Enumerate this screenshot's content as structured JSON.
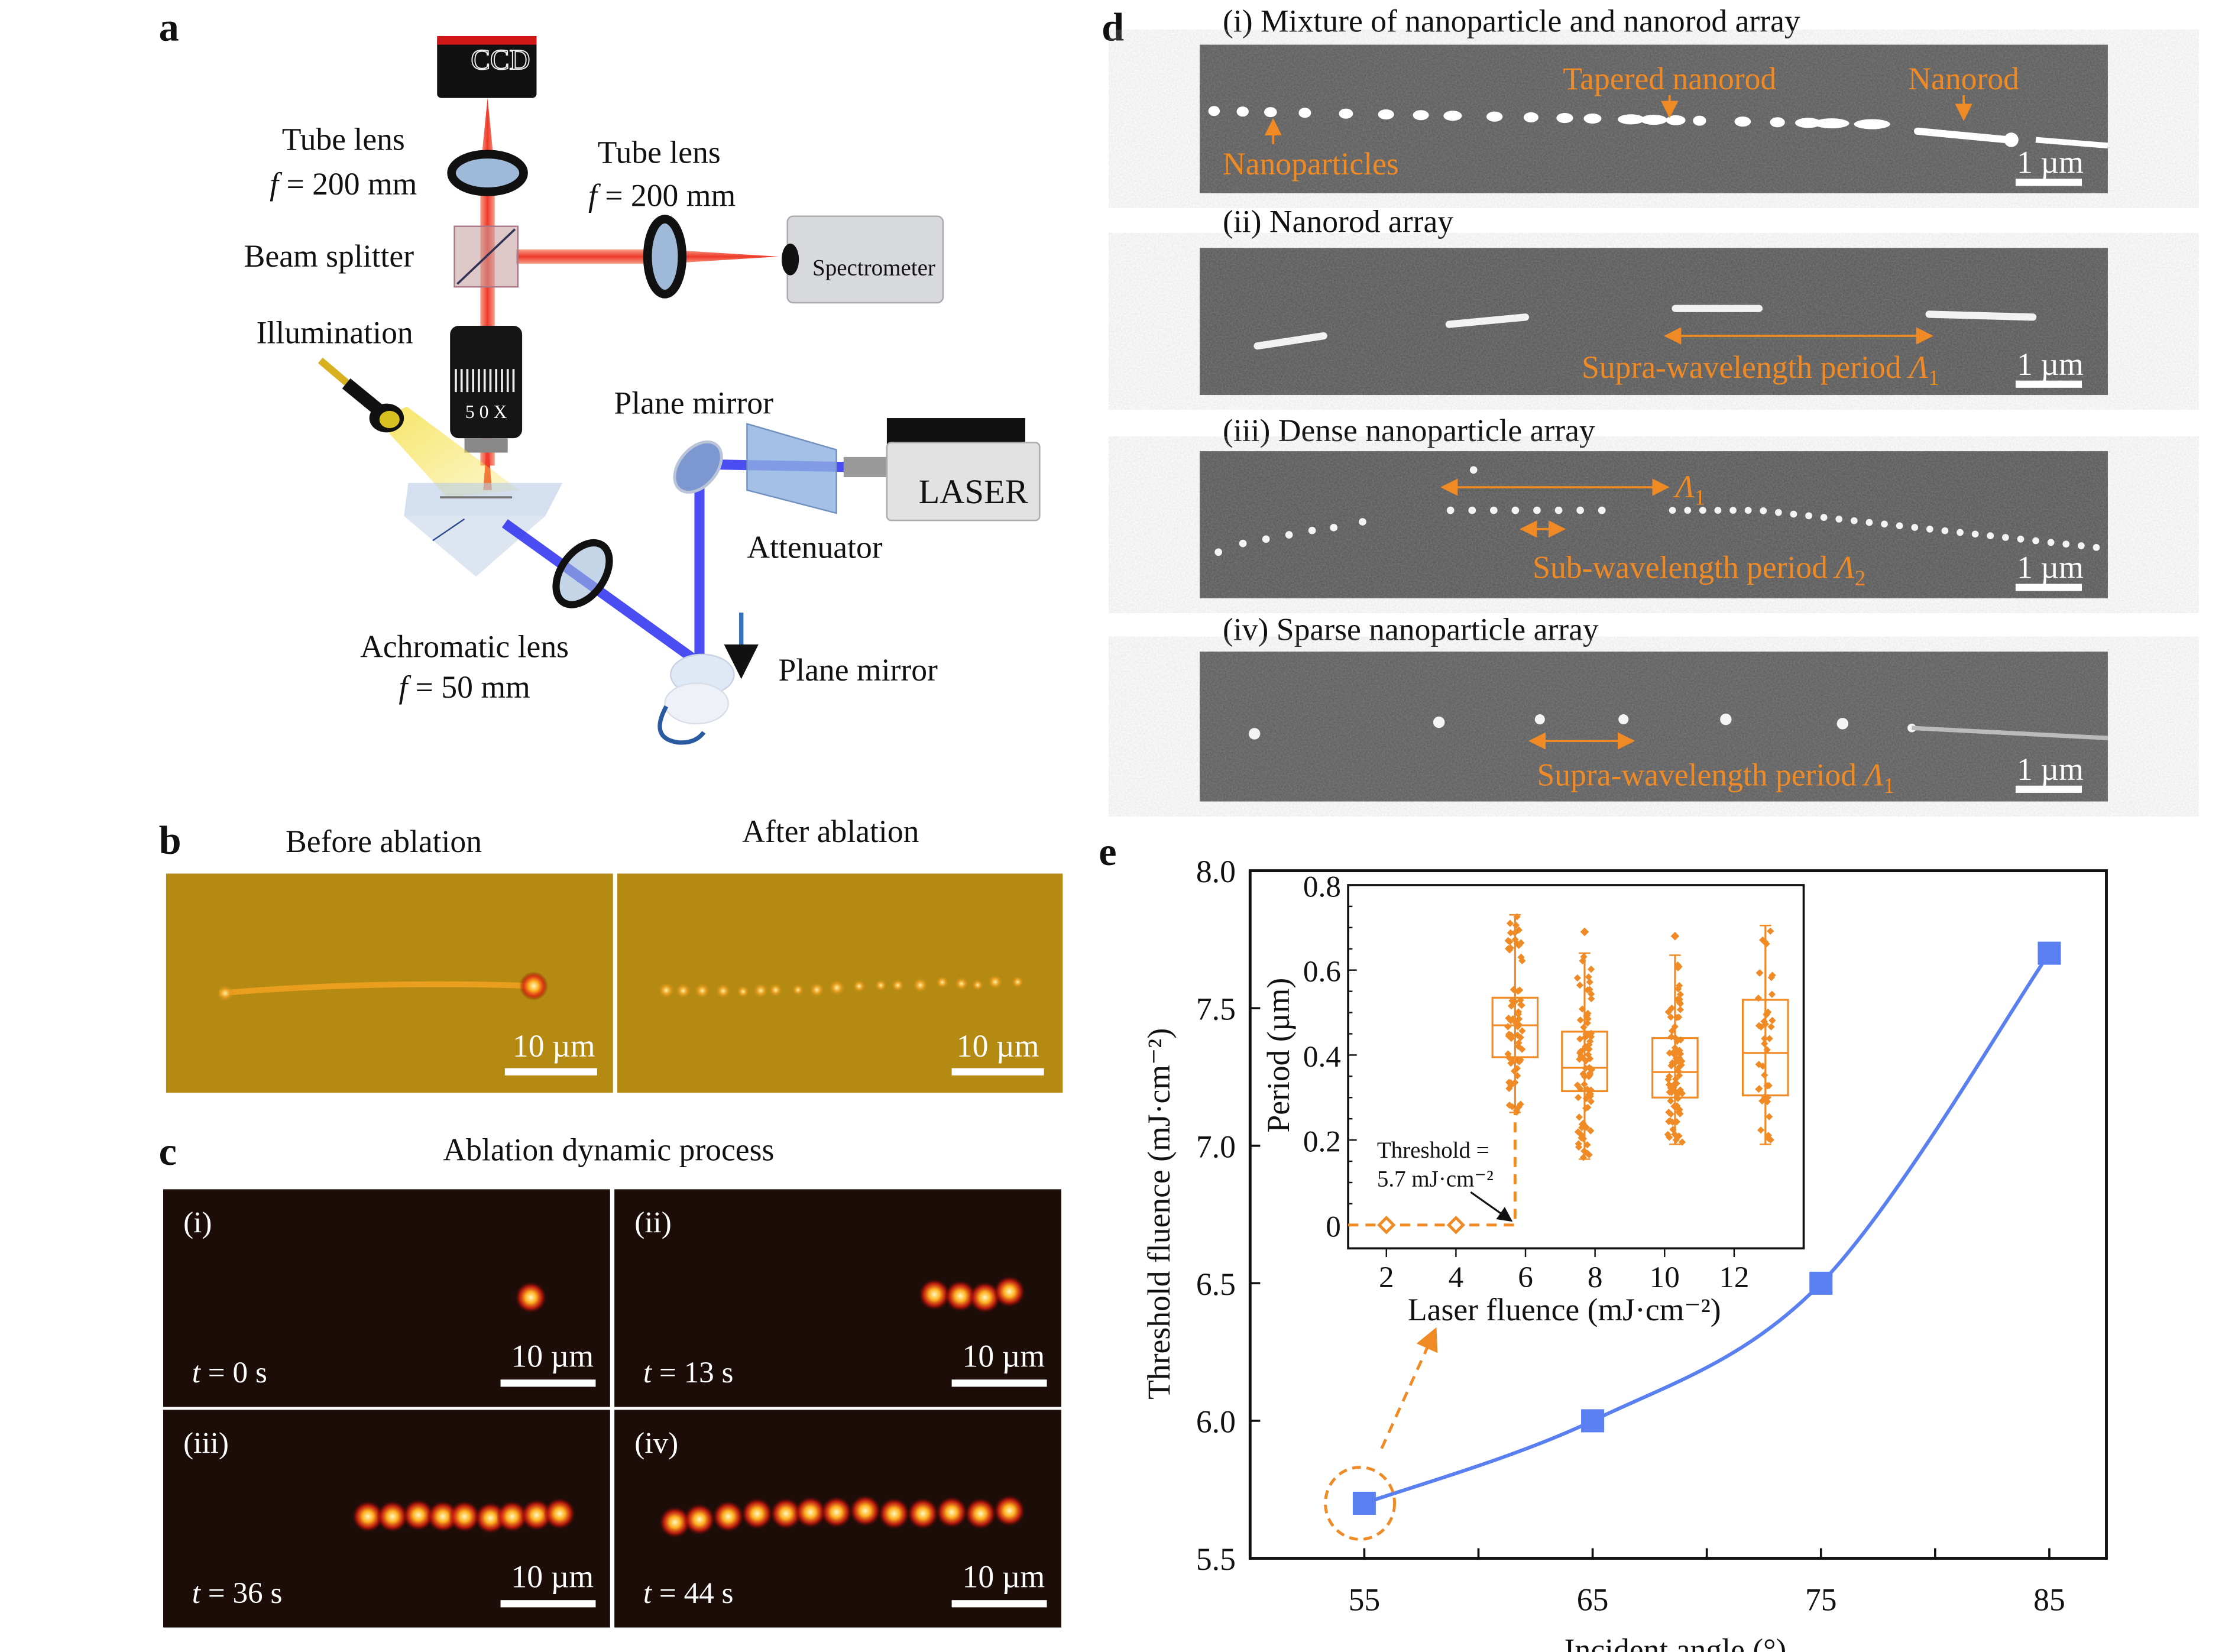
{
  "panel_a": {
    "letter": "a",
    "ccd": "CCD",
    "tube_lens_left": {
      "name": "Tube lens",
      "f_symbol": "f",
      "f_value": " = 200 mm"
    },
    "tube_lens_right": {
      "name": "Tube lens",
      "f_symbol": "f",
      "f_value": " = 200 mm"
    },
    "beam_splitter": "Beam splitter",
    "spectrometer": "Spectrometer",
    "illumination": "Illumination",
    "objective": "5 0 X",
    "plane_mirror_top": "Plane mirror",
    "laser": "LASER",
    "attenuator": "Attenuator",
    "achromatic_lens": {
      "name": "Achromatic lens",
      "f_symbol": "f",
      "f_value": " = 50 mm"
    },
    "plane_mirror_bottom": "Plane mirror",
    "colors": {
      "red_beam": "#f0503c",
      "blue_beam": "#2a2ef0",
      "illumination": "#f5e04a"
    }
  },
  "panel_b": {
    "letter": "b",
    "before": "Before ablation",
    "after": "After ablation",
    "scale_bar": "10 µm",
    "background": "#b58a12"
  },
  "panel_c": {
    "letter": "c",
    "title": "Ablation dynamic process",
    "scale_bar": "10 µm",
    "frames": [
      {
        "index": "(i)",
        "t_symbol": "t",
        "t_value": " = 0 s"
      },
      {
        "index": "(ii)",
        "t_symbol": "t",
        "t_value": " = 13 s"
      },
      {
        "index": "(iii)",
        "t_symbol": "t",
        "t_value": " = 36 s"
      },
      {
        "index": "(iv)",
        "t_symbol": "t",
        "t_value": " = 44 s"
      }
    ]
  },
  "panel_d": {
    "letter": "d",
    "scale_bar": "1 µm",
    "rows": [
      {
        "title": "(i) Mixture of nanoparticle and nanorod array",
        "annotations": {
          "tapered": "Tapered nanorod",
          "nanorod": "Nanorod",
          "nanoparticles": "Nanoparticles"
        }
      },
      {
        "title": "(ii) Nanorod array",
        "annotations": {
          "period": "Supra-wavelength period ",
          "symbol": "Λ",
          "subscript": "1"
        }
      },
      {
        "title": "(iii) Dense nanoparticle array",
        "annotations": {
          "symbol_top": "Λ",
          "subscript_top": "1",
          "period": "Sub-wavelength period ",
          "symbol": "Λ",
          "subscript": "2"
        }
      },
      {
        "title": "(iv) Sparse nanoparticle array",
        "annotations": {
          "period": "Supra-wavelength period ",
          "symbol": "Λ",
          "subscript": "1"
        }
      }
    ],
    "annotation_color": "#f08a24"
  },
  "panel_e": {
    "letter": "e"
  },
  "chart_data": [
    {
      "type": "line",
      "title": "",
      "xlabel": "Incident angle (°)",
      "ylabel": "Threshold fluence (mJ·cm⁻²)",
      "x": [
        55,
        65,
        75,
        85
      ],
      "y": [
        5.7,
        6.0,
        6.5,
        7.7
      ],
      "xlim": [
        50,
        87.5
      ],
      "ylim": [
        5.5,
        8.0
      ],
      "xticks": [
        55,
        65,
        75,
        85
      ],
      "xticklabels": [
        "55",
        "65",
        "75",
        "85"
      ],
      "yticks": [
        5.5,
        6.0,
        6.5,
        7.0,
        7.5,
        8.0
      ],
      "yticklabels": [
        "5.5",
        "6.0",
        "6.5",
        "7.0",
        "7.5",
        "8.0"
      ],
      "marker": "square",
      "color": "#5a7ff0",
      "highlight_point": 55,
      "highlight_color": "#f08a24",
      "grid": false
    },
    {
      "type": "box",
      "inset": true,
      "xlabel": "Laser fluence (mJ·cm⁻²)",
      "ylabel": "Period (µm)",
      "xlim": [
        0.9,
        14
      ],
      "ylim": [
        -0.055,
        0.8
      ],
      "xticks": [
        2,
        4,
        6,
        8,
        10,
        12
      ],
      "xticklabels": [
        "2",
        "4",
        "6",
        "8",
        "10",
        "12"
      ],
      "yticks": [
        0,
        0.2,
        0.4,
        0.6,
        0.8
      ],
      "yticklabels": [
        "0",
        "0.2",
        "0.4",
        "0.6",
        "0.8"
      ],
      "zero_points": {
        "x": [
          2,
          4
        ],
        "y": [
          0,
          0
        ]
      },
      "threshold": {
        "value": 5.7,
        "label_line1": "Threshold =",
        "label_line2": "5.7 mJ·cm⁻²"
      },
      "boxes": [
        {
          "x": 5.7,
          "whisker_low": 0.265,
          "q1": 0.395,
          "median": 0.47,
          "q3": 0.535,
          "whisker_high": 0.73,
          "outliers": [],
          "n": 70
        },
        {
          "x": 7.7,
          "whisker_low": 0.155,
          "q1": 0.315,
          "median": 0.37,
          "q3": 0.455,
          "whisker_high": 0.64,
          "outliers": [
            0.69
          ],
          "n": 80
        },
        {
          "x": 10.3,
          "whisker_low": 0.19,
          "q1": 0.3,
          "median": 0.36,
          "q3": 0.44,
          "whisker_high": 0.635,
          "outliers": [
            0.68
          ],
          "n": 80
        },
        {
          "x": 12.9,
          "whisker_low": 0.19,
          "q1": 0.305,
          "median": 0.405,
          "q3": 0.53,
          "whisker_high": 0.705,
          "outliers": [],
          "n": 40
        }
      ],
      "color": "#f08a24",
      "grid": false
    }
  ]
}
